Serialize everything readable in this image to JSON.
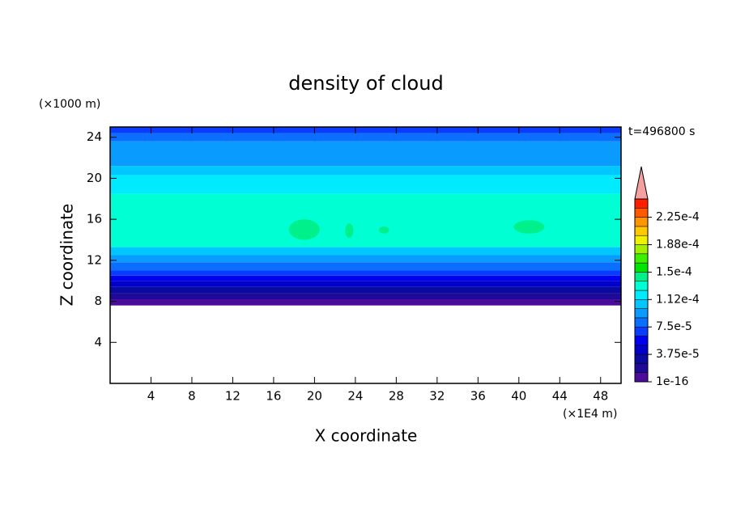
{
  "chart_data": {
    "type": "contour",
    "title": "density of cloud",
    "x_label": "X coordinate",
    "y_label": "Z coordinate",
    "x_unit": "(×1E4 m)",
    "y_unit": "(×1000 m)",
    "annotation": "t=496800 s",
    "xlim": [
      0,
      50
    ],
    "ylim": [
      0,
      25
    ],
    "xticks": [
      4,
      8,
      12,
      16,
      20,
      24,
      28,
      32,
      36,
      40,
      44,
      48
    ],
    "yticks": [
      4,
      8,
      12,
      16,
      20,
      24
    ],
    "layers": [
      {
        "z": [
          7.6,
          8.2
        ],
        "value": 6e-06
      },
      {
        "z": [
          8.2,
          8.8
        ],
        "value": 1.8e-05
      },
      {
        "z": [
          8.8,
          9.4
        ],
        "value": 3e-05
      },
      {
        "z": [
          9.4,
          10.0
        ],
        "value": 4.4e-05
      },
      {
        "z": [
          10.0,
          10.5
        ],
        "value": 5.6e-05
      },
      {
        "z": [
          10.5,
          11.0
        ],
        "value": 6.8e-05
      },
      {
        "z": [
          11.0,
          11.8
        ],
        "value": 8e-05
      },
      {
        "z": [
          11.8,
          12.5
        ],
        "value": 9.4e-05
      },
      {
        "z": [
          12.5,
          13.3
        ],
        "value": 0.000106
      },
      {
        "z": [
          13.3,
          18.5
        ],
        "value": 0.00013
      },
      {
        "z": [
          18.5,
          20.3
        ],
        "value": 0.000118
      },
      {
        "z": [
          20.3,
          21.2
        ],
        "value": 0.000106
      },
      {
        "z": [
          21.2,
          23.6
        ],
        "value": 9.4e-05
      },
      {
        "z": [
          23.6,
          24.4
        ],
        "value": 8e-05
      },
      {
        "z": [
          24.4,
          25.0
        ],
        "value": 6.8e-05
      }
    ],
    "patches": [
      {
        "x": [
          39.5,
          42.5
        ],
        "z": [
          14.6,
          15.9
        ],
        "value": 0.00014
      },
      {
        "x": [
          26.3,
          27.3
        ],
        "z": [
          14.6,
          15.3
        ],
        "value": 0.00014
      },
      {
        "x": [
          17.5,
          20.5
        ],
        "z": [
          14.0,
          16.0
        ],
        "value": 0.00014
      },
      {
        "x": [
          23.0,
          23.8
        ],
        "z": [
          14.2,
          15.6
        ],
        "value": 0.00014
      }
    ],
    "colorbar": {
      "lim": [
        1e-16,
        0.00025
      ],
      "colors": [
        "#4b0c9c",
        "#1e0a96",
        "#0a0aa0",
        "#0000c8",
        "#0000f0",
        "#0a3cff",
        "#0a6eff",
        "#0a9bff",
        "#00c8ff",
        "#00ebff",
        "#00ffd2",
        "#00f08c",
        "#00e600",
        "#3cf000",
        "#a0f000",
        "#f0f000",
        "#ffc800",
        "#ff9600",
        "#ff5a00",
        "#ff1e00"
      ],
      "over_color": "#f4a0a0",
      "ticks": [
        {
          "value": 1e-16,
          "label": "1e-16"
        },
        {
          "value": 3.75e-05,
          "label": "3.75e-5"
        },
        {
          "value": 7.5e-05,
          "label": "7.5e-5"
        },
        {
          "value": 0.0001125,
          "label": "1.12e-4"
        },
        {
          "value": 0.00015,
          "label": "1.5e-4"
        },
        {
          "value": 0.0001875,
          "label": "1.88e-4"
        },
        {
          "value": 0.000225,
          "label": "2.25e-4"
        }
      ]
    }
  }
}
